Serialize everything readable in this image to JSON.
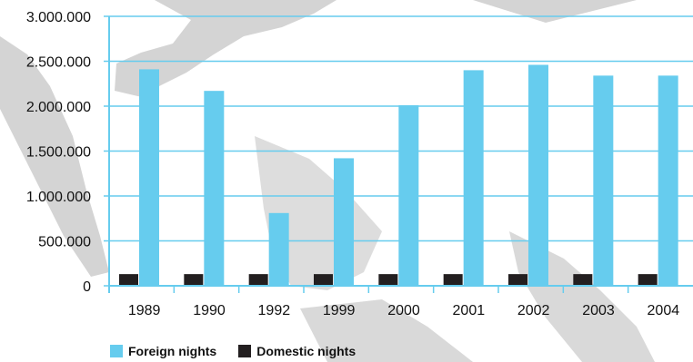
{
  "chart_data": {
    "type": "bar",
    "categories": [
      "1989",
      "1990",
      "1992",
      "1999",
      "2000",
      "2001",
      "2002",
      "2003",
      "2004"
    ],
    "series": [
      {
        "name": "Foreign nights",
        "color": "#66ccee",
        "values": [
          2410000,
          2170000,
          810000,
          1420000,
          2010000,
          2400000,
          2460000,
          2340000,
          2340000
        ]
      },
      {
        "name": "Domestic nights",
        "color": "#231f20",
        "values": [
          130000,
          130000,
          130000,
          130000,
          130000,
          130000,
          130000,
          130000,
          130000
        ]
      }
    ],
    "yticks": [
      "0",
      "500.000",
      "1.000.000",
      "1.500.000",
      "2.000.000",
      "2.500.000",
      "3.000.000"
    ],
    "ylim": [
      0,
      3000000
    ],
    "grid": true,
    "legend_position": "bottom-left",
    "axis_color": "#66ccee"
  }
}
